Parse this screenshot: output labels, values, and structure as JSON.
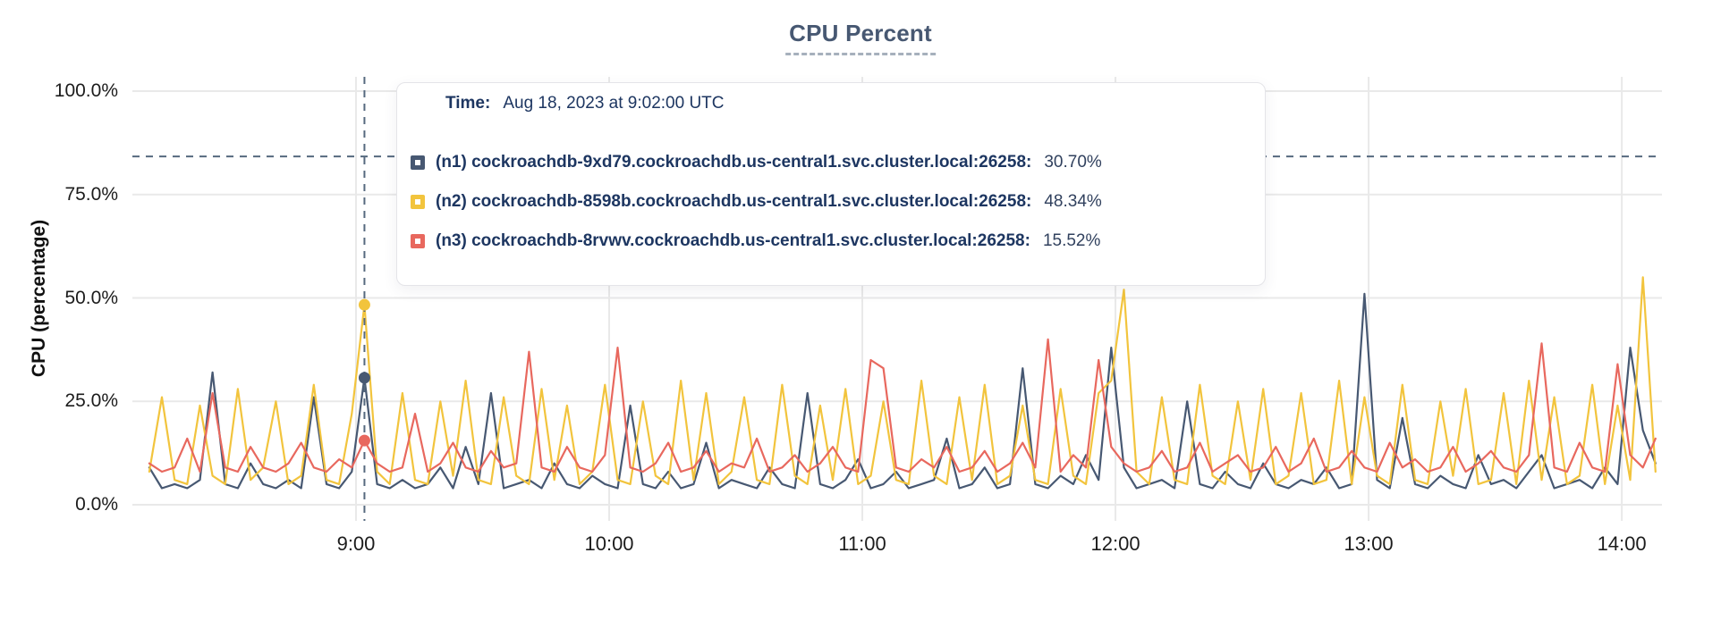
{
  "title": {
    "text": "CPU Percent"
  },
  "y_axis": {
    "label": "CPU (percentage)"
  },
  "tooltip": {
    "time_label": "Time:",
    "time_value": "Aug 18, 2023 at 9:02:00 UTC",
    "rows": [
      {
        "name": "(n1) cockroachdb-9xd79.cockroachdb.us-central1.svc.cluster.local:26258:",
        "value": "30.70%",
        "color": "#475872"
      },
      {
        "name": "(n2) cockroachdb-8598b.cockroachdb.us-central1.svc.cluster.local:26258:",
        "value": "48.34%",
        "color": "#F2C43D"
      },
      {
        "name": "(n3) cockroachdb-8rvwv.cockroachdb.us-central1.svc.cluster.local:26258:",
        "value": "15.52%",
        "color": "#E8685E"
      }
    ]
  },
  "colors": {
    "title": "#475872",
    "grid": "#e9e9e9",
    "cursor": "#56697f",
    "n1": "#475872",
    "n2": "#F2C43D",
    "n3": "#E8685E"
  },
  "chart_data": {
    "type": "line",
    "title": "CPU Percent",
    "xlabel": "",
    "ylabel": "CPU (percentage)",
    "ylim": [
      0,
      100
    ],
    "grid": true,
    "x_unit": "minutes_since_midnight_UTC",
    "x_start_minutes": 491,
    "x_step_minutes": 3,
    "x_range_minutes": [
      491,
      848
    ],
    "y_ticks": {
      "values": [
        0,
        25,
        50,
        75,
        100
      ],
      "labels": [
        "0.0%",
        "25.0%",
        "50.0%",
        "75.0%",
        "100.0%"
      ]
    },
    "x_ticks": {
      "minutes": [
        540,
        600,
        660,
        720,
        780,
        840
      ],
      "labels": [
        "9:00",
        "10:00",
        "11:00",
        "12:00",
        "13:00",
        "14:00"
      ]
    },
    "cursor": {
      "time_minutes": 542,
      "time_label": "Aug 18, 2023 at 9:02:00 UTC",
      "crosshair_percent": 84.2,
      "points": [
        {
          "series_index": 0,
          "value_percent": 30.7
        },
        {
          "series_index": 1,
          "value_percent": 48.34
        },
        {
          "series_index": 2,
          "value_percent": 15.52
        }
      ]
    },
    "series": [
      {
        "name": "(n1) cockroachdb-9xd79.cockroachdb.us-central1.svc.cluster.local:26258",
        "color": "#475872",
        "values": [
          9,
          4,
          5,
          4,
          6,
          32,
          5,
          4,
          10,
          5,
          4,
          6,
          4,
          26,
          5,
          4,
          8,
          30.7,
          5,
          4,
          6,
          4,
          5,
          9,
          4,
          14,
          5,
          27,
          4,
          5,
          6,
          4,
          10,
          5,
          4,
          7,
          5,
          4,
          24,
          5,
          4,
          8,
          4,
          5,
          15,
          4,
          6,
          5,
          4,
          9,
          5,
          4,
          27,
          5,
          4,
          6,
          11,
          4,
          5,
          8,
          4,
          5,
          6,
          16,
          4,
          5,
          9,
          4,
          5,
          33,
          5,
          4,
          7,
          5,
          12,
          6,
          38,
          9,
          4,
          5,
          6,
          4,
          25,
          5,
          4,
          8,
          5,
          4,
          10,
          5,
          4,
          6,
          5,
          9,
          4,
          5,
          51,
          6,
          4,
          21,
          5,
          4,
          7,
          5,
          4,
          12,
          5,
          6,
          4,
          8,
          12,
          4,
          5,
          6,
          4,
          9,
          5,
          38,
          18,
          10
        ]
      },
      {
        "name": "(n2) cockroachdb-8598b.cockroachdb.us-central1.svc.cluster.local:26258",
        "color": "#F2C43D",
        "values": [
          8,
          26,
          6,
          5,
          24,
          7,
          5,
          28,
          6,
          9,
          25,
          5,
          7,
          29,
          6,
          5,
          22,
          48.34,
          8,
          5,
          27,
          6,
          5,
          25,
          7,
          30,
          6,
          5,
          26,
          7,
          5,
          28,
          6,
          24,
          5,
          8,
          29,
          6,
          5,
          25,
          7,
          5,
          30,
          6,
          27,
          5,
          8,
          26,
          6,
          5,
          29,
          7,
          5,
          24,
          6,
          28,
          5,
          7,
          25,
          6,
          5,
          30,
          7,
          5,
          26,
          6,
          29,
          5,
          7,
          24,
          6,
          5,
          28,
          7,
          5,
          27,
          30,
          52,
          8,
          5,
          26,
          6,
          5,
          29,
          7,
          5,
          25,
          6,
          28,
          5,
          7,
          27,
          5,
          6,
          30,
          5,
          26,
          7,
          5,
          29,
          6,
          5,
          25,
          7,
          28,
          5,
          6,
          27,
          5,
          30,
          6,
          26,
          5,
          7,
          29,
          5,
          24,
          6,
          55,
          8
        ]
      },
      {
        "name": "(n3) cockroachdb-8rvwv.cockroachdb.us-central1.svc.cluster.local:26258",
        "color": "#E8685E",
        "values": [
          10,
          8,
          9,
          16,
          8,
          27,
          9,
          8,
          14,
          9,
          8,
          10,
          15,
          9,
          8,
          11,
          9,
          15.52,
          10,
          8,
          9,
          22,
          8,
          10,
          15,
          9,
          8,
          13,
          9,
          10,
          37,
          9,
          8,
          14,
          9,
          8,
          12,
          38,
          9,
          8,
          10,
          15,
          8,
          9,
          13,
          8,
          10,
          9,
          16,
          8,
          9,
          12,
          8,
          10,
          14,
          9,
          8,
          35,
          33,
          9,
          8,
          11,
          9,
          14,
          8,
          9,
          13,
          8,
          10,
          15,
          9,
          40,
          8,
          12,
          9,
          35,
          14,
          10,
          8,
          9,
          13,
          8,
          9,
          15,
          8,
          10,
          12,
          8,
          9,
          14,
          8,
          10,
          16,
          8,
          9,
          13,
          9,
          8,
          15,
          9,
          11,
          8,
          9,
          14,
          8,
          10,
          13,
          9,
          8,
          12,
          39,
          9,
          8,
          15,
          9,
          8,
          34,
          12,
          9,
          16
        ]
      }
    ]
  }
}
